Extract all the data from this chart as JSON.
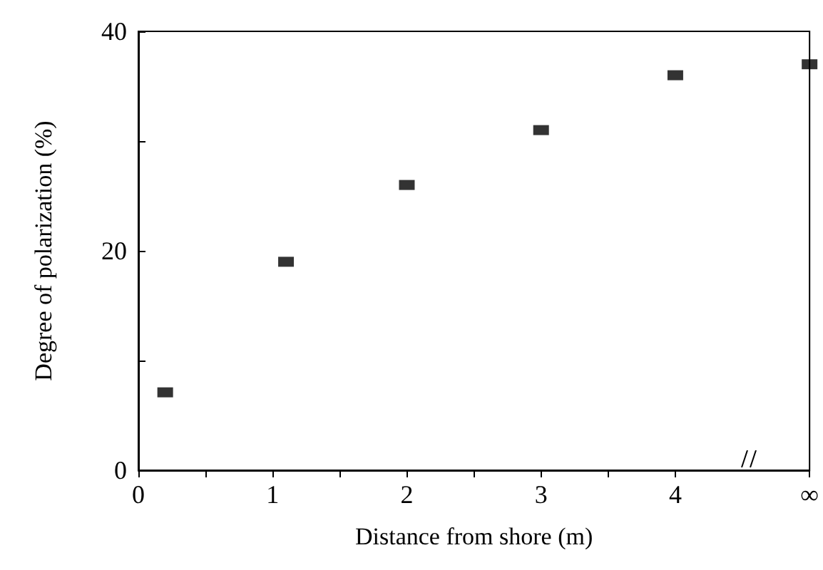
{
  "chart_data": {
    "type": "scatter",
    "xlabel": "Distance from shore (m)",
    "ylabel": "Degree of polarization (%)",
    "x": [
      0.2,
      1.1,
      2.0,
      3.0,
      4.0,
      5
    ],
    "values": [
      7.1,
      19,
      26,
      31,
      36,
      37
    ],
    "color": "#000000",
    "marker": "square",
    "xlim": [
      0,
      5
    ],
    "xticks": [
      0,
      {
        "value": 0.5,
        "label": null
      },
      1,
      {
        "value": 1.5,
        "label": null
      },
      2,
      {
        "value": 2.5,
        "label": null
      },
      3,
      {
        "value": 3.5,
        "label": null
      },
      4,
      {
        "value": 5,
        "label": "∞"
      }
    ],
    "ylim": [
      0,
      40
    ],
    "yticks": [
      0,
      {
        "value": 10,
        "label": null
      },
      20,
      {
        "value": 30,
        "label": null
      },
      40
    ],
    "grid": false
  }
}
